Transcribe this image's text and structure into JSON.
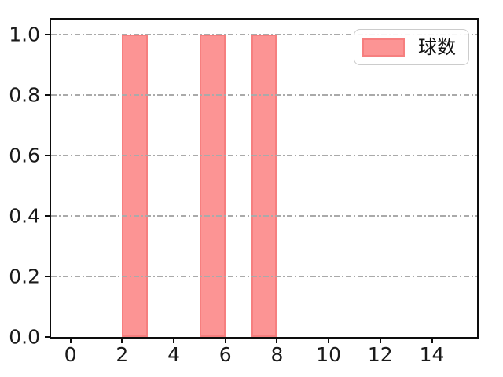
{
  "chart_data": {
    "type": "bar",
    "title": "",
    "xlabel": "",
    "ylabel": "",
    "xlim": [
      -0.75,
      15.75
    ],
    "ylim": [
      0,
      1.05
    ],
    "grid": {
      "axis": "y",
      "linestyle": "dash-dot",
      "color": "#aaaaaa",
      "drawn_over_bars": true
    },
    "legend": {
      "label": "球数",
      "position": "upper right"
    },
    "x_ticks": [
      {
        "value": 0,
        "label": "0"
      },
      {
        "value": 2,
        "label": "2"
      },
      {
        "value": 4,
        "label": "4"
      },
      {
        "value": 6,
        "label": "6"
      },
      {
        "value": 8,
        "label": "8"
      },
      {
        "value": 10,
        "label": "10"
      },
      {
        "value": 12,
        "label": "12"
      },
      {
        "value": 14,
        "label": "14"
      }
    ],
    "y_ticks": [
      {
        "value": 0.0,
        "label": "0.0"
      },
      {
        "value": 0.2,
        "label": "0.2"
      },
      {
        "value": 0.4,
        "label": "0.4"
      },
      {
        "value": 0.6,
        "label": "0.6"
      },
      {
        "value": 0.8,
        "label": "0.8"
      },
      {
        "value": 1.0,
        "label": "1.0"
      }
    ],
    "series": [
      {
        "name": "球数",
        "fill_color": "#fc9494",
        "edge_color": "#f67f7f",
        "bars": [
          {
            "x_from": 2,
            "x_to": 3,
            "height": 1.0
          },
          {
            "x_from": 5,
            "x_to": 6,
            "height": 1.0
          },
          {
            "x_from": 7,
            "x_to": 8,
            "height": 1.0
          }
        ]
      }
    ]
  },
  "colors": {
    "spine": "#0d0d0d",
    "tick_label": "#1a1a1a",
    "grid": "#aaaaaa",
    "legend_border": "#cccccc"
  }
}
